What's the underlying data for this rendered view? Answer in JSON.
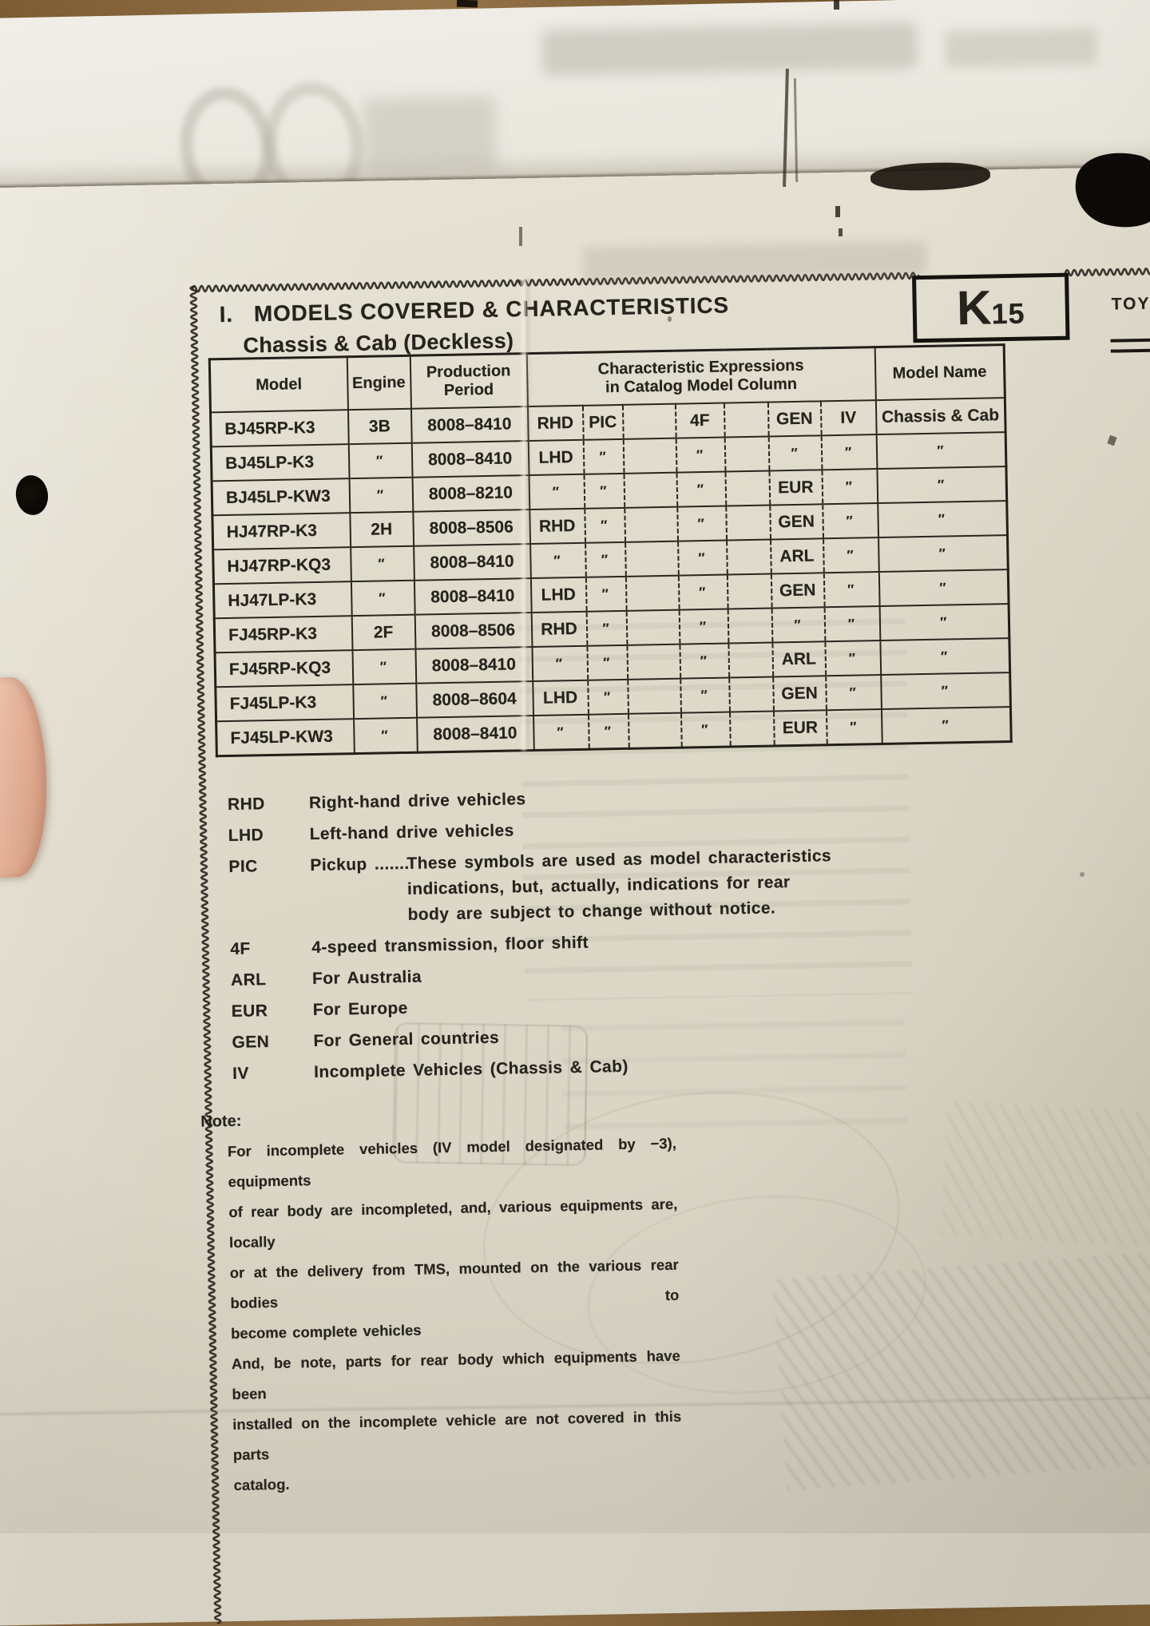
{
  "page": {
    "section_number": "I.",
    "title": "MODELS COVERED & CHARACTERISTICS",
    "subtitle": "Chassis & Cab (Deckless)",
    "page_code": {
      "letter": "K",
      "number": "15"
    },
    "corner_text": "TOY"
  },
  "table": {
    "headers": {
      "model": "Model",
      "engine": "Engine",
      "production_period": [
        "Production",
        "Period"
      ],
      "characteristics": [
        "Characteristic Expressions",
        "in Catalog Model Column"
      ],
      "model_name": "Model Name"
    },
    "rows": [
      [
        "BJ45RP-K3",
        "3B",
        "8008–8410",
        "RHD",
        "PIC",
        "",
        "4F",
        "",
        "GEN",
        "IV",
        "Chassis & Cab"
      ],
      [
        "BJ45LP-K3",
        "″",
        "8008–8410",
        "LHD",
        "″",
        "",
        "″",
        "",
        "″",
        "″",
        "″"
      ],
      [
        "BJ45LP-KW3",
        "″",
        "8008–8210",
        "″",
        "″",
        "",
        "″",
        "",
        "EUR",
        "″",
        "″"
      ],
      [
        "HJ47RP-K3",
        "2H",
        "8008–8506",
        "RHD",
        "″",
        "",
        "″",
        "",
        "GEN",
        "″",
        "″"
      ],
      [
        "HJ47RP-KQ3",
        "″",
        "8008–8410",
        "″",
        "″",
        "",
        "″",
        "",
        "ARL",
        "″",
        "″"
      ],
      [
        "HJ47LP-K3",
        "″",
        "8008–8410",
        "LHD",
        "″",
        "",
        "″",
        "",
        "GEN",
        "″",
        "″"
      ],
      [
        "FJ45RP-K3",
        "2F",
        "8008–8506",
        "RHD",
        "″",
        "",
        "″",
        "",
        "″",
        "″",
        "″"
      ],
      [
        "FJ45RP-KQ3",
        "″",
        "8008–8410",
        "″",
        "″",
        "",
        "″",
        "",
        "ARL",
        "″",
        "″"
      ],
      [
        "FJ45LP-K3",
        "″",
        "8008–8604",
        "LHD",
        "″",
        "",
        "″",
        "",
        "GEN",
        "″",
        "″"
      ],
      [
        "FJ45LP-KW3",
        "″",
        "8008–8410",
        "″",
        "″",
        "",
        "″",
        "",
        "EUR",
        "″",
        "″"
      ]
    ]
  },
  "legend": [
    {
      "term": "RHD",
      "lines": [
        "Right-hand drive vehicles"
      ]
    },
    {
      "term": "LHD",
      "lines": [
        "Left-hand drive vehicles"
      ]
    },
    {
      "term": "PIC",
      "prefix": "Pickup .......",
      "lines": [
        "These symbols are used as model characteristics",
        "indications, but, actually, indications for rear",
        "body are subject to change without notice."
      ]
    },
    {
      "term": "4F",
      "lines": [
        "4-speed transmission, floor shift"
      ]
    },
    {
      "term": "ARL",
      "lines": [
        "For Australia"
      ]
    },
    {
      "term": "EUR",
      "lines": [
        "For Europe"
      ]
    },
    {
      "term": "GEN",
      "lines": [
        "For General countries"
      ]
    },
    {
      "term": "IV",
      "lines": [
        "Incomplete Vehicles (Chassis & Cab)"
      ]
    }
  ],
  "note": {
    "label": "Note:",
    "lines": [
      "For incomplete vehicles (IV model designated by −3), equipments",
      "of rear body are incompleted, and, various equipments are, locally",
      "or at the delivery from TMS, mounted on the various rear bodies to",
      "become complete vehicles",
      "And, be note, parts for rear body which equipments have been",
      "installed on the incomplete vehicle are not covered in this parts",
      "catalog."
    ]
  },
  "colors": {
    "paper": "#ddd8c8",
    "ink": "#26231d"
  }
}
